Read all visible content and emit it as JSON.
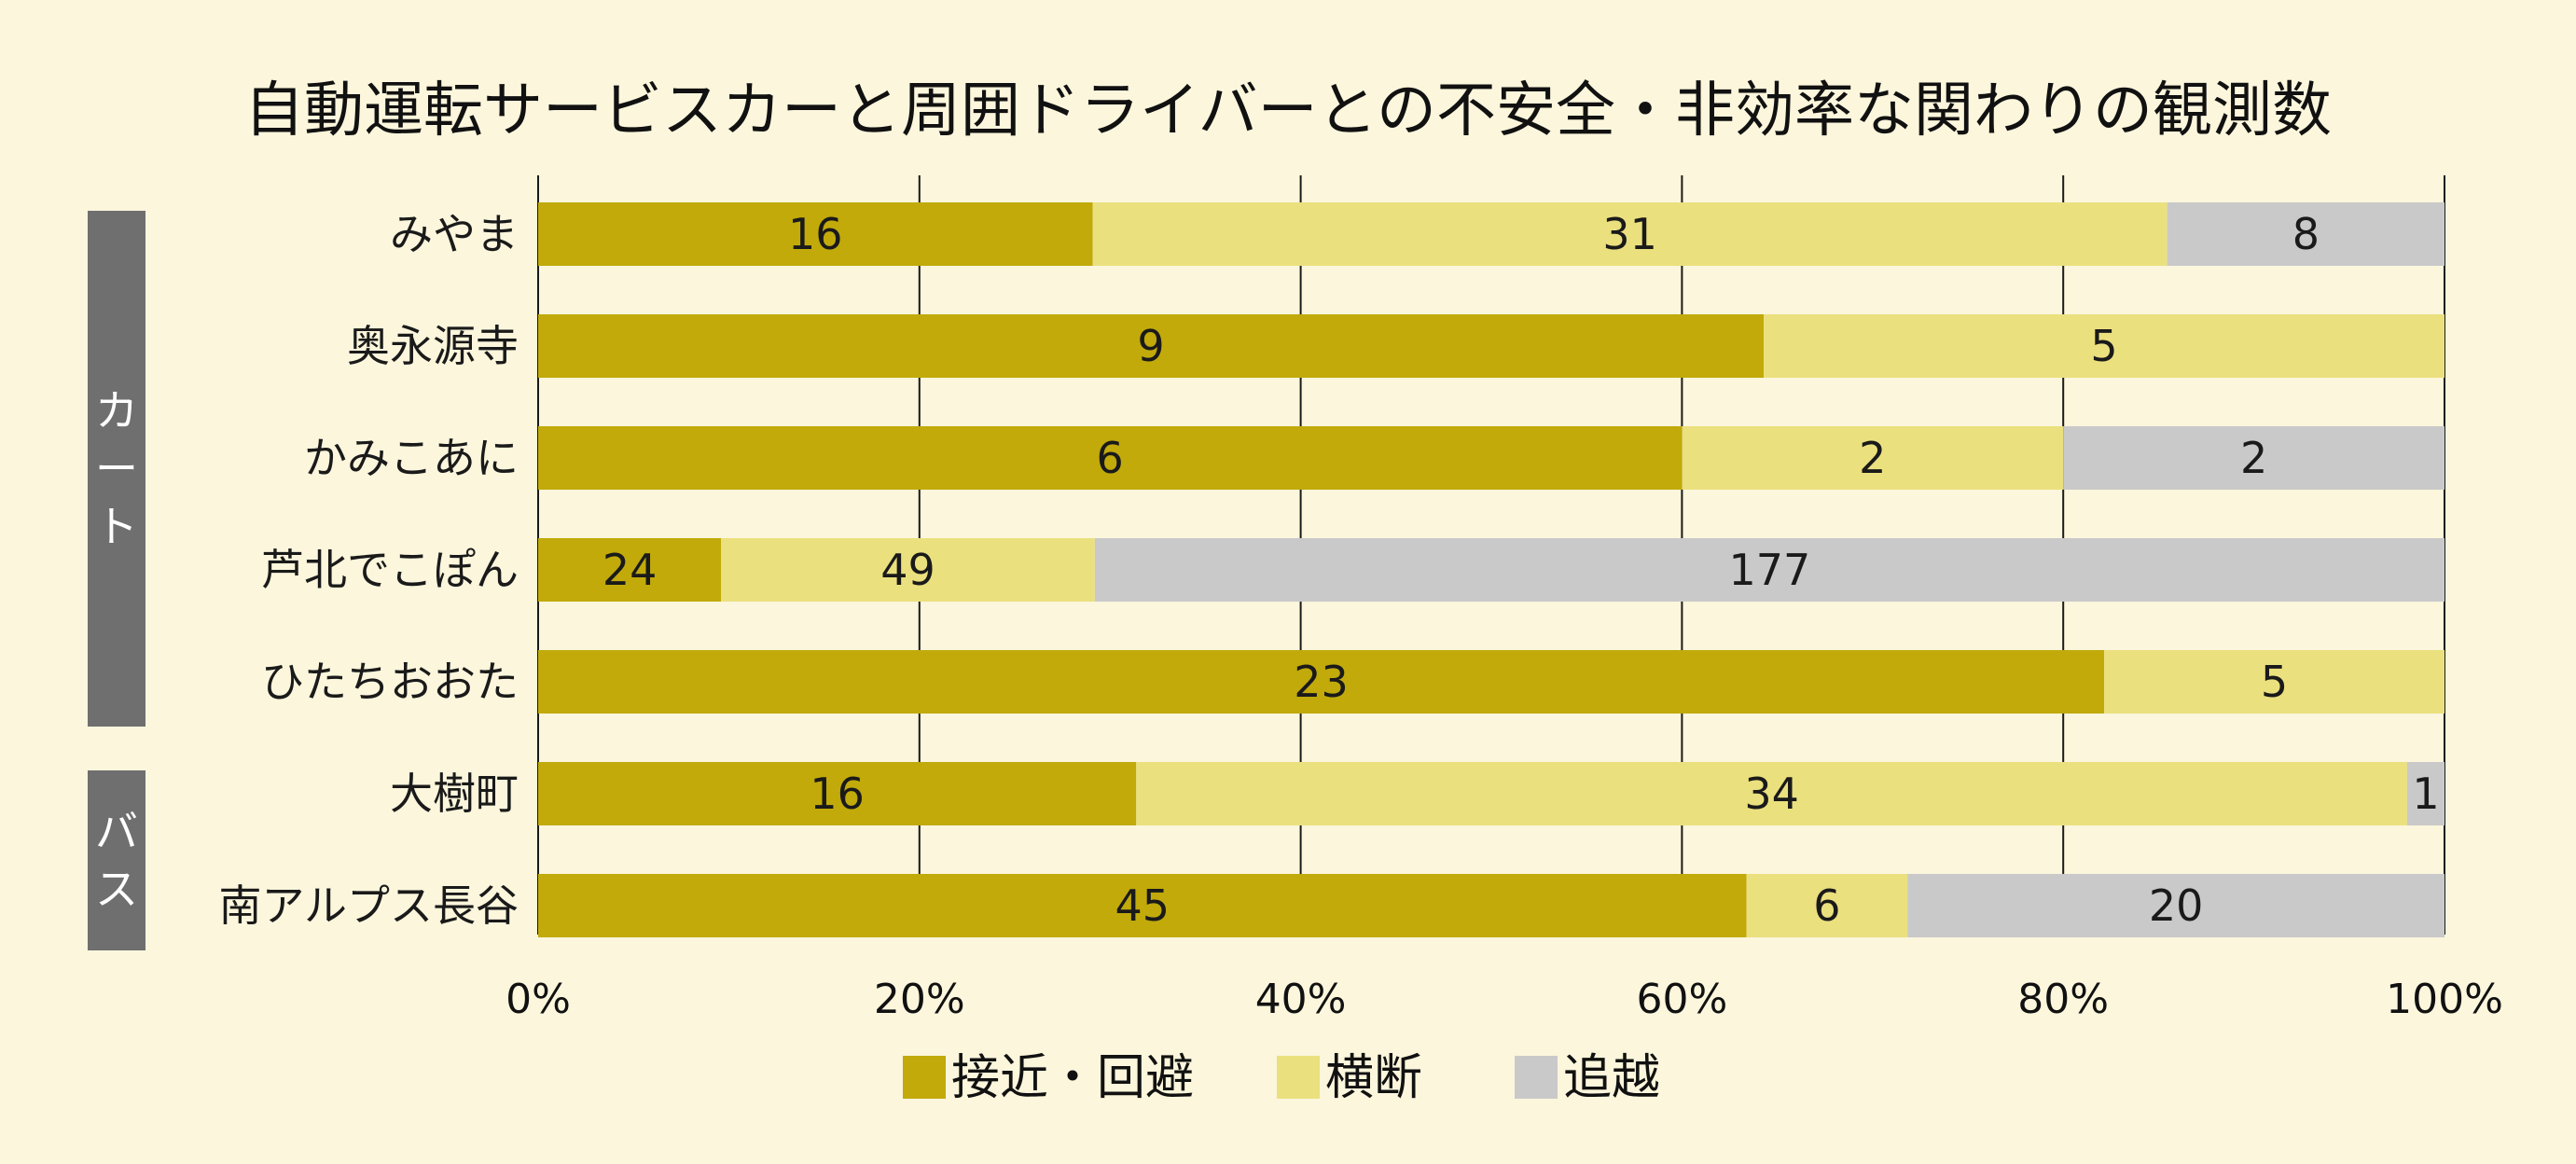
{
  "chart_data": {
    "type": "bar",
    "orientation": "horizontal",
    "stacked": "percent",
    "title": "自動運転サービスカーと周囲ドライバーとの不安全・非効率な関わりの観測数",
    "categories": [
      "みやま",
      "奥永源寺",
      "かみこあに",
      "芦北でこぽん",
      "ひたちおおた",
      "大樹町",
      "南アルプス長谷"
    ],
    "groups": [
      {
        "label": "カート",
        "categories": [
          "みやま",
          "奥永源寺",
          "かみこあに",
          "芦北でこぽん",
          "ひたちおおた"
        ]
      },
      {
        "label": "バス",
        "categories": [
          "大樹町",
          "南アルプス長谷"
        ]
      }
    ],
    "series": [
      {
        "name": "接近・回避",
        "color": "#c1aa0a",
        "values": [
          16,
          9,
          6,
          24,
          23,
          16,
          45
        ]
      },
      {
        "name": "横断",
        "color": "#ebe07e",
        "values": [
          31,
          5,
          2,
          49,
          5,
          34,
          6
        ]
      },
      {
        "name": "追越",
        "color": "#c9c9c9",
        "values": [
          8,
          0,
          2,
          177,
          0,
          1,
          20
        ]
      }
    ],
    "x_ticks": [
      "0%",
      "20%",
      "40%",
      "60%",
      "80%",
      "100%"
    ],
    "xlim": [
      0,
      100
    ],
    "grid": true,
    "legend_position": "bottom",
    "group_label_color": "#6f6f6f"
  }
}
